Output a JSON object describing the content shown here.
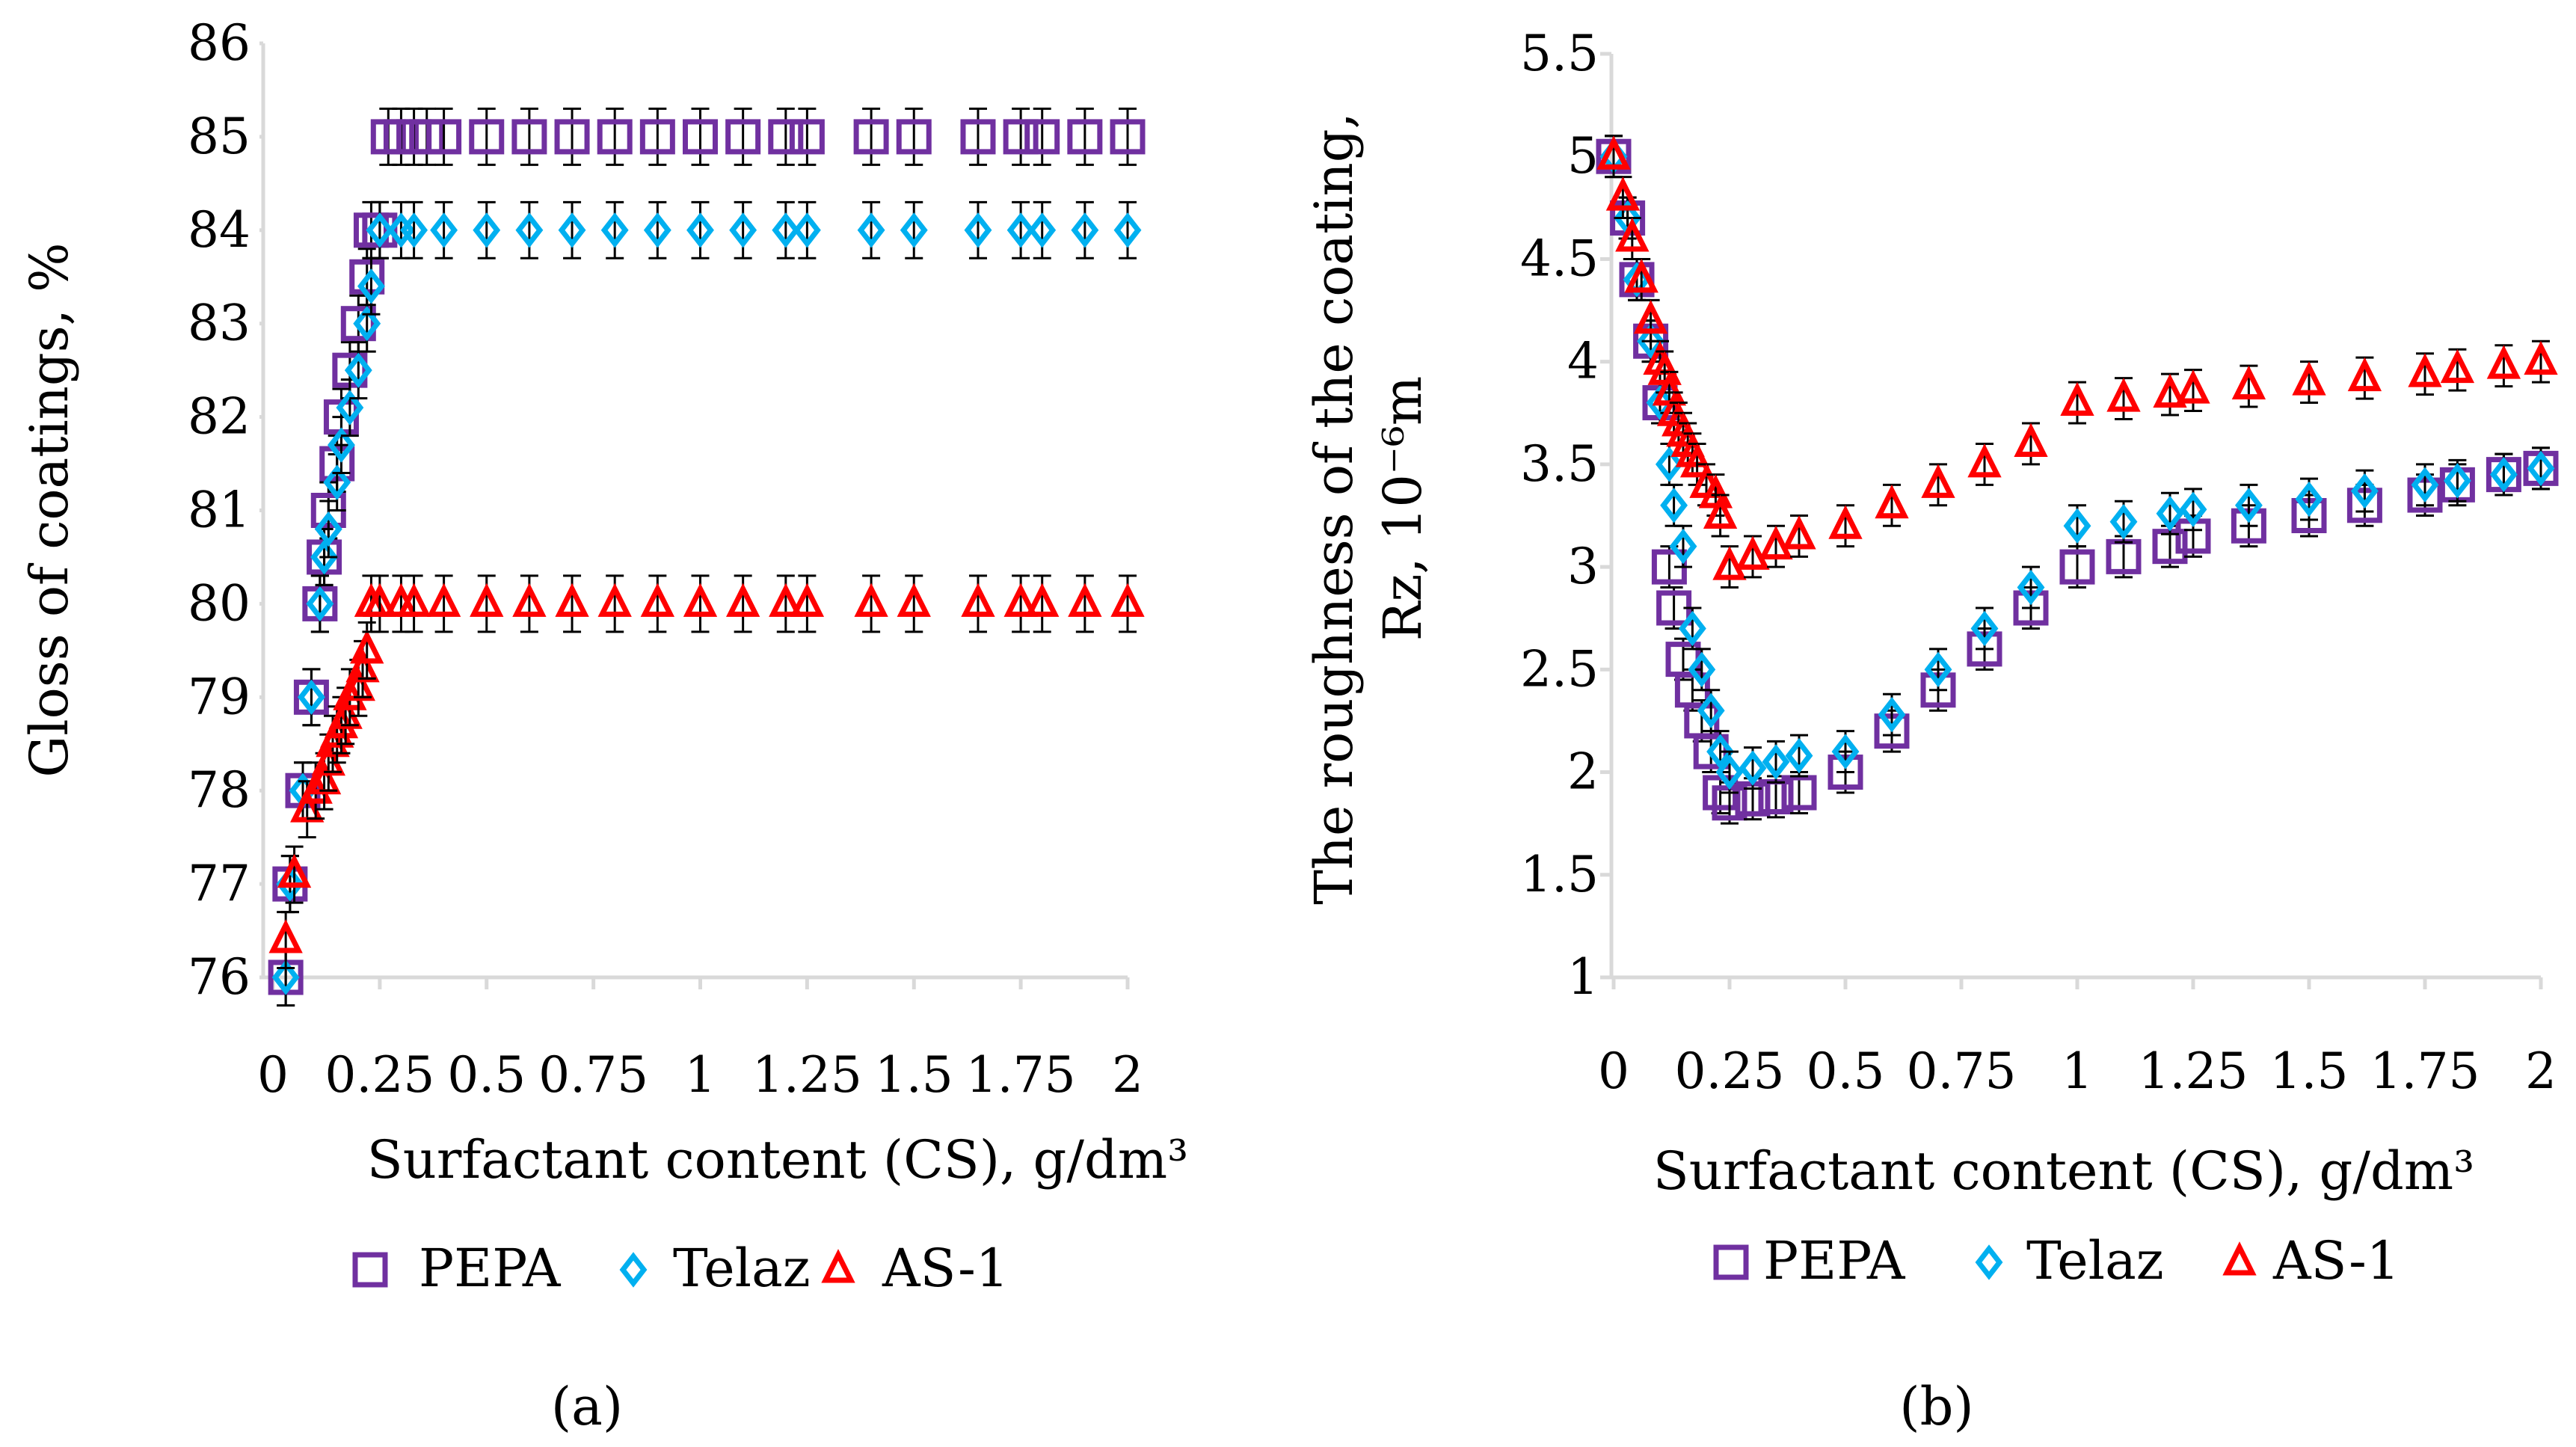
{
  "colors": {
    "PEPA": "#7030a0",
    "Telaz": "#00b0f0",
    "AS-1": "#ff0000",
    "axis": "#d9d9d9"
  },
  "chart_data": [
    {
      "id": "a",
      "type": "scatter",
      "panel_label": "(a)",
      "ylabel": "Gloss of coatings, %",
      "xlabel": "Surfactant content  (CS), g/dm³",
      "xlim": [
        0,
        2
      ],
      "ylim": [
        76,
        86
      ],
      "x_ticks": [
        0,
        0.25,
        0.5,
        0.75,
        1,
        1.25,
        1.5,
        1.75,
        2
      ],
      "x_tick_labels": [
        "0",
        "0.25",
        "0.5",
        "0.75",
        "1",
        "1.25",
        "1.5",
        "1.75",
        "2"
      ],
      "y_ticks": [
        76,
        77,
        78,
        79,
        80,
        81,
        82,
        83,
        84,
        85,
        86
      ],
      "y_tick_labels": [
        "76",
        "77",
        "78",
        "79",
        "80",
        "81",
        "82",
        "83",
        "84",
        "85",
        "86"
      ],
      "error": 0.3,
      "legend": [
        "PEPA",
        "Telaz",
        "AS-1"
      ],
      "series": [
        {
          "name": "PEPA",
          "marker": "square",
          "x": [
            0.03,
            0.04,
            0.07,
            0.09,
            0.11,
            0.12,
            0.13,
            0.15,
            0.16,
            0.18,
            0.2,
            0.22,
            0.23,
            0.25,
            0.27,
            0.3,
            0.33,
            0.36,
            0.4,
            0.5,
            0.6,
            0.7,
            0.8,
            0.9,
            1.0,
            1.1,
            1.2,
            1.25,
            1.4,
            1.5,
            1.65,
            1.75,
            1.8,
            1.9,
            2.0
          ],
          "y": [
            76,
            77,
            78,
            79,
            80,
            80.5,
            81,
            81.5,
            82,
            82.5,
            83,
            83.5,
            84,
            84,
            85,
            85,
            85,
            85,
            85,
            85,
            85,
            85,
            85,
            85,
            85,
            85,
            85,
            85,
            85,
            85,
            85,
            85,
            85,
            85,
            85
          ]
        },
        {
          "name": "Telaz",
          "marker": "diamond",
          "x": [
            0.03,
            0.04,
            0.07,
            0.09,
            0.11,
            0.12,
            0.13,
            0.15,
            0.16,
            0.18,
            0.2,
            0.22,
            0.23,
            0.25,
            0.3,
            0.33,
            0.4,
            0.5,
            0.6,
            0.7,
            0.8,
            0.9,
            1.0,
            1.1,
            1.2,
            1.25,
            1.4,
            1.5,
            1.65,
            1.75,
            1.8,
            1.9,
            2.0
          ],
          "y": [
            76,
            77,
            78,
            79,
            80,
            80.5,
            80.8,
            81.3,
            81.7,
            82.1,
            82.5,
            83,
            83.4,
            84,
            84,
            84,
            84,
            84,
            84,
            84,
            84,
            84,
            84,
            84,
            84,
            84,
            84,
            84,
            84,
            84,
            84,
            84,
            84
          ]
        },
        {
          "name": "AS-1",
          "marker": "triangle",
          "x": [
            0.03,
            0.05,
            0.08,
            0.1,
            0.12,
            0.13,
            0.14,
            0.15,
            0.16,
            0.17,
            0.18,
            0.2,
            0.21,
            0.22,
            0.23,
            0.25,
            0.3,
            0.33,
            0.4,
            0.5,
            0.6,
            0.7,
            0.8,
            0.9,
            1.0,
            1.1,
            1.2,
            1.25,
            1.4,
            1.5,
            1.65,
            1.75,
            1.8,
            1.9,
            2.0
          ],
          "y": [
            76.4,
            77.1,
            77.8,
            78,
            78.1,
            78.3,
            78.5,
            78.6,
            78.7,
            78.8,
            79,
            79.1,
            79.3,
            79.5,
            80,
            80,
            80,
            80,
            80,
            80,
            80,
            80,
            80,
            80,
            80,
            80,
            80,
            80,
            80,
            80,
            80,
            80,
            80,
            80,
            80
          ]
        }
      ]
    },
    {
      "id": "b",
      "type": "scatter",
      "panel_label": "(b)",
      "ylabel_line1": "The roughness of the coating,",
      "ylabel_line2": "Rz, 10⁻⁶m",
      "xlabel": "Surfactant content  (CS), g/dm³",
      "xlim": [
        0,
        2
      ],
      "ylim": [
        1,
        5.5
      ],
      "x_ticks": [
        0,
        0.25,
        0.5,
        0.75,
        1,
        1.25,
        1.5,
        1.75,
        2
      ],
      "x_tick_labels": [
        "0",
        "0.25",
        "0.5",
        "0.75",
        "1",
        "1.25",
        "1.5",
        "1.75",
        "2"
      ],
      "y_ticks": [
        1,
        1.5,
        2,
        2.5,
        3,
        3.5,
        4,
        4.5,
        5,
        5.5
      ],
      "y_tick_labels": [
        "1",
        "1.5",
        "2",
        "2.5",
        "3",
        "3.5",
        "4",
        "4.5",
        "5",
        "5.5"
      ],
      "error": 0.1,
      "legend": [
        "PEPA",
        "Telaz",
        "AS-1"
      ],
      "series": [
        {
          "name": "PEPA",
          "marker": "square",
          "x": [
            0,
            0.03,
            0.05,
            0.08,
            0.1,
            0.12,
            0.13,
            0.15,
            0.17,
            0.19,
            0.21,
            0.23,
            0.25,
            0.3,
            0.35,
            0.4,
            0.5,
            0.6,
            0.7,
            0.8,
            0.9,
            1.0,
            1.1,
            1.2,
            1.25,
            1.37,
            1.5,
            1.62,
            1.75,
            1.82,
            1.92,
            2.0
          ],
          "y": [
            5,
            4.7,
            4.4,
            4.1,
            3.8,
            3.0,
            2.8,
            2.55,
            2.4,
            2.25,
            2.1,
            1.9,
            1.85,
            1.87,
            1.88,
            1.9,
            2.0,
            2.2,
            2.4,
            2.6,
            2.8,
            3.0,
            3.05,
            3.1,
            3.15,
            3.2,
            3.25,
            3.3,
            3.35,
            3.4,
            3.45,
            3.48
          ]
        },
        {
          "name": "Telaz",
          "marker": "diamond",
          "x": [
            0,
            0.03,
            0.05,
            0.08,
            0.1,
            0.12,
            0.13,
            0.15,
            0.17,
            0.19,
            0.21,
            0.23,
            0.25,
            0.3,
            0.35,
            0.4,
            0.5,
            0.6,
            0.7,
            0.8,
            0.9,
            1.0,
            1.1,
            1.2,
            1.25,
            1.37,
            1.5,
            1.62,
            1.75,
            1.82,
            1.92,
            2.0
          ],
          "y": [
            5,
            4.7,
            4.4,
            4.1,
            3.8,
            3.5,
            3.3,
            3.1,
            2.7,
            2.5,
            2.3,
            2.1,
            2.0,
            2.02,
            2.05,
            2.08,
            2.1,
            2.28,
            2.5,
            2.7,
            2.9,
            3.2,
            3.22,
            3.26,
            3.28,
            3.3,
            3.33,
            3.37,
            3.4,
            3.42,
            3.45,
            3.48
          ]
        },
        {
          "name": "AS-1",
          "marker": "triangle",
          "x": [
            0,
            0.02,
            0.04,
            0.06,
            0.08,
            0.1,
            0.11,
            0.12,
            0.13,
            0.14,
            0.15,
            0.16,
            0.17,
            0.18,
            0.2,
            0.22,
            0.23,
            0.25,
            0.3,
            0.35,
            0.4,
            0.5,
            0.6,
            0.7,
            0.8,
            0.9,
            1.0,
            1.1,
            1.2,
            1.25,
            1.37,
            1.5,
            1.62,
            1.75,
            1.82,
            1.92,
            2.0
          ],
          "y": [
            5,
            4.8,
            4.6,
            4.4,
            4.2,
            4.0,
            3.95,
            3.85,
            3.75,
            3.7,
            3.65,
            3.6,
            3.55,
            3.5,
            3.4,
            3.35,
            3.25,
            3.0,
            3.05,
            3.1,
            3.15,
            3.2,
            3.3,
            3.4,
            3.5,
            3.6,
            3.8,
            3.82,
            3.84,
            3.86,
            3.88,
            3.9,
            3.92,
            3.94,
            3.96,
            3.98,
            4.0
          ]
        }
      ]
    }
  ]
}
